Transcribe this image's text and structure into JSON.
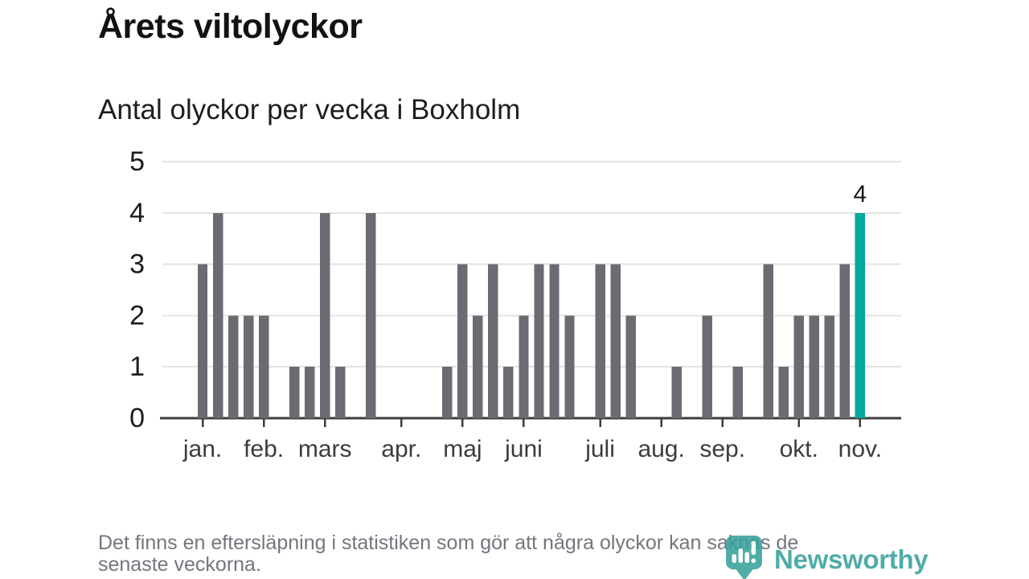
{
  "title": "Årets viltolyckor",
  "subtitle": "Antal olyckor per vecka i Boxholm",
  "footnote": {
    "line1": "Det finns en eftersläpning i statistiken som gör att några olyckor kan saknas de",
    "line2": "senaste veckorna."
  },
  "logo": {
    "wordmark": "Newsworthy"
  },
  "colors": {
    "bar": "#6b6b72",
    "highlight": "#00a79c",
    "grid": "#e3e3e3",
    "axis": "#3e3e3e",
    "y_label": "#1c1c1c",
    "month_label": "#3c3c3c",
    "annotation": "#171717",
    "footnote_text": "#75757e",
    "logo": "#38a19b"
  },
  "chart_data": {
    "type": "bar",
    "title": "Antal olyckor per vecka i Boxholm",
    "xlabel": "",
    "ylabel": "",
    "x_unit": "week",
    "x_domain_weeks": [
      1,
      48
    ],
    "ylim": [
      0,
      5
    ],
    "yticks": [
      0,
      1,
      2,
      3,
      4,
      5
    ],
    "grid": true,
    "legend": "none",
    "values_by_week": [
      0,
      0,
      3,
      4,
      2,
      2,
      2,
      0,
      1,
      1,
      4,
      1,
      0,
      4,
      0,
      0,
      0,
      0,
      1,
      3,
      2,
      3,
      1,
      2,
      3,
      3,
      2,
      0,
      3,
      3,
      2,
      0,
      0,
      1,
      0,
      2,
      0,
      1,
      0,
      3,
      1,
      2,
      2,
      2,
      3,
      4
    ],
    "month_ticks": [
      {
        "label": "jan.",
        "week": 3
      },
      {
        "label": "feb.",
        "week": 7
      },
      {
        "label": "mars",
        "week": 11
      },
      {
        "label": "apr.",
        "week": 16
      },
      {
        "label": "maj",
        "week": 20
      },
      {
        "label": "juni",
        "week": 24
      },
      {
        "label": "juli",
        "week": 29
      },
      {
        "label": "aug.",
        "week": 33
      },
      {
        "label": "sep.",
        "week": 37
      },
      {
        "label": "okt.",
        "week": 42
      },
      {
        "label": "nov.",
        "week": 46
      }
    ],
    "highlight_week": 46,
    "annotation": {
      "week": 46,
      "text": "4"
    }
  }
}
